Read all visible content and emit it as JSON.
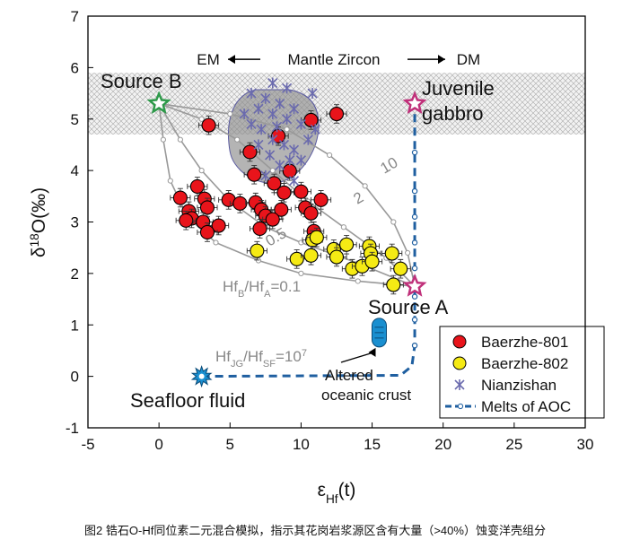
{
  "chart_data": {
    "type": "scatter",
    "x_label": [
      "ε",
      "Hf",
      "(t)"
    ],
    "y_label": [
      "δ",
      "18",
      "O(‰)"
    ],
    "xlim": [
      -5,
      30
    ],
    "ylim": [
      -1,
      7
    ],
    "xticks": [
      -5,
      0,
      5,
      10,
      15,
      20,
      25,
      30
    ],
    "yticks": [
      -1,
      0,
      1,
      2,
      3,
      4,
      5,
      6,
      7
    ],
    "band": {
      "ylim": [
        4.7,
        5.9
      ],
      "label": "Mantle Zircon",
      "left": "EM",
      "right": "DM"
    },
    "legend": "lower right",
    "series": [
      {
        "name": "Baerzhe-801",
        "color": "#e8141b",
        "marker": "circle",
        "xerr": 0.7,
        "yerr": 0.18,
        "x": [
          3.5,
          10.7,
          12.5,
          6.4,
          8.4,
          9.2,
          6.7,
          2.7,
          8.1,
          8.8,
          10.0,
          1.5,
          3.2,
          4.9,
          5.7,
          6.8,
          11.4,
          10.3,
          3.4,
          2.1,
          7.2,
          8.6,
          7.5,
          8.0,
          10.7,
          2.3,
          1.9,
          3.1,
          4.2,
          7.1,
          3.4,
          10.9
        ],
        "values": [
          4.88,
          4.98,
          5.1,
          4.36,
          4.67,
          3.99,
          3.92,
          3.69,
          3.75,
          3.57,
          3.59,
          3.47,
          3.45,
          3.43,
          3.36,
          3.38,
          3.43,
          3.28,
          3.28,
          3.21,
          3.24,
          3.24,
          3.12,
          3.05,
          3.17,
          3.07,
          3.03,
          3.0,
          2.93,
          2.87,
          2.8,
          2.82
        ]
      },
      {
        "name": "Baerzhe-802",
        "color": "#f5ea14",
        "marker": "circle",
        "xerr": 0.7,
        "yerr": 0.18,
        "x": [
          6.9,
          9.7,
          10.8,
          10.7,
          11.1,
          12.3,
          13.2,
          12.5,
          14.8,
          14.9,
          16.4,
          13.6,
          14.3,
          15.0,
          17.0,
          16.5
        ],
        "values": [
          2.44,
          2.28,
          2.65,
          2.35,
          2.7,
          2.47,
          2.56,
          2.32,
          2.53,
          2.39,
          2.39,
          2.09,
          2.14,
          2.23,
          2.09,
          1.78
        ]
      },
      {
        "name": "Nianzishan",
        "color": "#6a6aae",
        "marker": "star",
        "x": [
          6.5,
          7,
          7.5,
          8,
          8.5,
          9,
          9.5,
          10,
          7.2,
          8,
          8.8,
          9.5,
          10.5,
          11,
          6.5,
          7,
          7.8,
          8.5,
          9.2,
          10,
          8,
          9,
          7.5,
          9.5,
          10.8,
          6,
          8.3
        ],
        "values": [
          5.5,
          5.2,
          5.4,
          5.1,
          5.3,
          5.0,
          5.2,
          4.9,
          4.8,
          4.6,
          4.5,
          4.4,
          4.6,
          4.8,
          4.9,
          4.5,
          4.3,
          4.1,
          4.2,
          4.2,
          5.7,
          5.6,
          3.9,
          3.8,
          5.5,
          5.1,
          4.85
        ]
      },
      {
        "name": "Melts of AOC",
        "color": "#1f5fa0",
        "marker": "line",
        "x": [
          3,
          17,
          17.8,
          18,
          18,
          18,
          18,
          18,
          18,
          18,
          18,
          18
        ],
        "values": [
          0,
          0.02,
          0.2,
          0.6,
          1.1,
          1.55,
          2.1,
          2.6,
          3.1,
          3.6,
          4.35,
          5.3
        ]
      }
    ],
    "mixing_curves": [
      {
        "label": [
          "Hf",
          "B",
          "/Hf",
          "A",
          "=0.1"
        ],
        "x": [
          0,
          0.3,
          0.8,
          2,
          4,
          7,
          10,
          14,
          18
        ],
        "values": [
          5.3,
          4.6,
          3.8,
          3.1,
          2.6,
          2.25,
          2.0,
          1.85,
          1.75
        ]
      },
      {
        "label": [
          "0.5"
        ],
        "x": [
          0,
          1.5,
          3,
          5,
          7.5,
          10,
          14,
          18
        ],
        "values": [
          5.3,
          4.6,
          4.0,
          3.4,
          2.9,
          2.6,
          2.2,
          1.75
        ]
      },
      {
        "label": [
          "2"
        ],
        "x": [
          0,
          3,
          5.5,
          8,
          10.5,
          13,
          16,
          18
        ],
        "values": [
          5.3,
          5.0,
          4.6,
          4.0,
          3.4,
          2.9,
          2.3,
          1.75
        ]
      },
      {
        "label": [
          "10"
        ],
        "x": [
          0,
          5,
          9,
          12,
          14.5,
          16.5,
          17.5,
          18
        ],
        "values": [
          5.3,
          5.1,
          4.8,
          4.3,
          3.7,
          3.0,
          2.4,
          1.75
        ]
      }
    ],
    "sources": [
      {
        "label": [
          "Source  B"
        ],
        "x": 0,
        "y": 5.3,
        "color": "#2e9a4a"
      },
      {
        "label": [
          "Juvenile",
          "gabbro"
        ],
        "x": 18,
        "y": 5.3,
        "color": "#c0307a"
      },
      {
        "label": [
          "Source A"
        ],
        "x": 18,
        "y": 1.75,
        "color": "#c0307a"
      },
      {
        "label": [
          "Seafloor fluid"
        ],
        "x": 3,
        "y": 0,
        "color": "#1a8fd0"
      },
      {
        "label": [
          "Altered",
          "oceanic crust"
        ],
        "x": 15.5,
        "y": 0.85,
        "color": "#1a8fd0"
      }
    ],
    "ratio_label": [
      "Hf",
      "JG",
      "/Hf",
      "SF",
      "=10",
      "7"
    ],
    "caption": "图2 锆石O-Hf同位素二元混合模拟，指示其花岗岩浆源区含有大量（>40%）蚀变洋壳组分"
  }
}
